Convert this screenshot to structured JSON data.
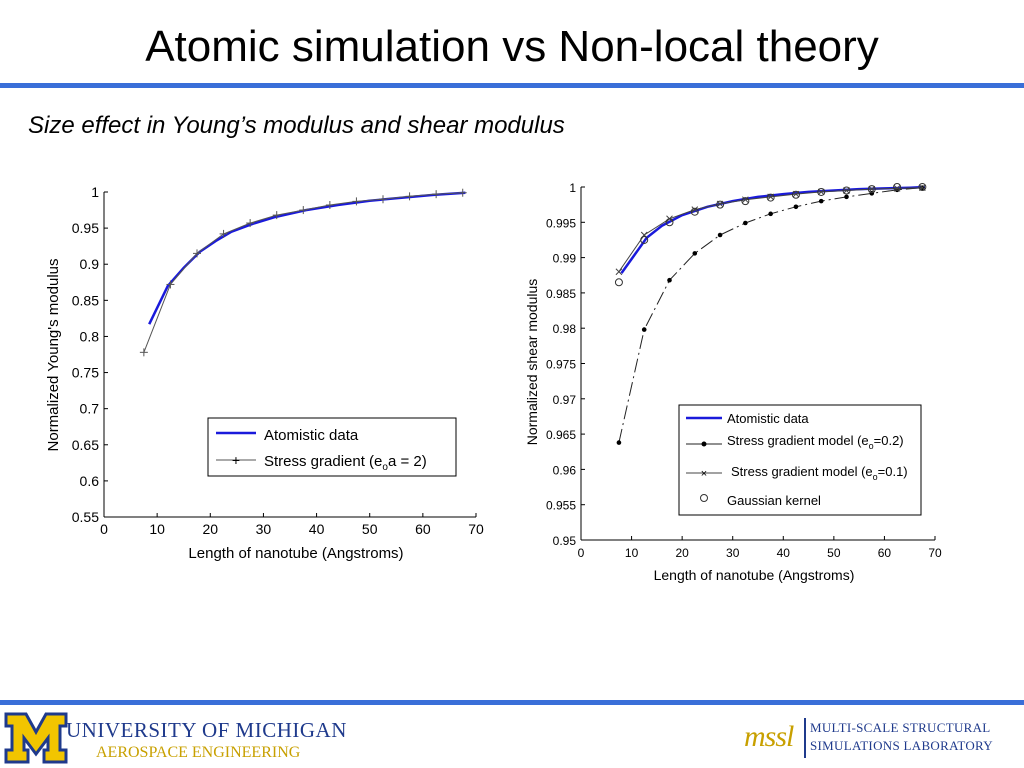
{
  "slide": {
    "title": "Atomic simulation vs Non-local theory",
    "subtitle": "Size effect in Young’s modulus and shear modulus",
    "accent_color": "#3a6fd8"
  },
  "footer": {
    "university_line1": "UNIVERSITY OF MICHIGAN",
    "university_line2": "AEROSPACE ENGINEERING",
    "logo_letter": "M",
    "lab_logo": "mssl",
    "lab_line1": "MULTI-SCALE STRUCTURAL",
    "lab_line2": "SIMULATIONS LABORATORY",
    "brand_blue": "#1f3a8c",
    "brand_maize": "#f2c500"
  },
  "chart_data": [
    {
      "type": "line",
      "xlabel": "Length of nanotube (Angstroms)",
      "ylabel": "Normalized Young's modulus",
      "xlim": [
        0,
        70
      ],
      "ylim": [
        0.55,
        1.0
      ],
      "xticks": [
        "0",
        "10",
        "20",
        "30",
        "40",
        "50",
        "60",
        "70"
      ],
      "yticks": [
        "0.55",
        "0.6",
        "0.65",
        "0.7",
        "0.75",
        "0.8",
        "0.85",
        "0.9",
        "0.95",
        "1"
      ],
      "legend_position": "bottom-right",
      "series": [
        {
          "name": "Atomistic data",
          "color": "#1a1adb",
          "style": "solid-thick",
          "x": [
            8.5,
            12,
            15,
            18,
            21,
            24,
            28,
            32,
            38,
            44,
            50,
            56,
            62,
            68
          ],
          "y": [
            0.817,
            0.87,
            0.895,
            0.917,
            0.932,
            0.945,
            0.956,
            0.965,
            0.975,
            0.982,
            0.988,
            0.992,
            0.996,
            0.999
          ]
        },
        {
          "name": "Stress gradient (eₒa = 2)",
          "color": "#555555",
          "style": "line-plus",
          "x": [
            7.5,
            12.5,
            17.5,
            22.5,
            27.5,
            32.5,
            37.5,
            42.5,
            47.5,
            52.5,
            57.5,
            62.5,
            67.5
          ],
          "y": [
            0.778,
            0.872,
            0.915,
            0.942,
            0.957,
            0.968,
            0.975,
            0.982,
            0.987,
            0.99,
            0.994,
            0.997,
            0.999
          ]
        }
      ]
    },
    {
      "type": "line",
      "xlabel": "Length of nanotube (Angstroms)",
      "ylabel": "Normalized shear modulus",
      "xlim": [
        0,
        70
      ],
      "ylim": [
        0.95,
        1.0
      ],
      "xticks": [
        "0",
        "10",
        "20",
        "30",
        "40",
        "50",
        "60",
        "70"
      ],
      "yticks": [
        "0.95",
        "0.955",
        "0.96",
        "0.965",
        "0.97",
        "0.975",
        "0.98",
        "0.985",
        "0.99",
        "0.995",
        "1"
      ],
      "legend_position": "bottom-right",
      "series": [
        {
          "name": "Atomistic data",
          "color": "#1a1adb",
          "style": "solid-thick",
          "x": [
            8,
            10,
            13,
            16,
            20,
            25,
            30,
            35,
            40,
            45,
            50,
            55,
            60,
            65,
            68
          ],
          "y": [
            0.9878,
            0.9898,
            0.9928,
            0.9945,
            0.996,
            0.9972,
            0.998,
            0.9986,
            0.999,
            0.9993,
            0.9995,
            0.9997,
            0.9998,
            0.9999,
            1.0
          ]
        },
        {
          "name": "Stress gradient model (eₒ=0.2)",
          "color": "#222222",
          "style": "dashdot-dot",
          "x": [
            7.5,
            12.5,
            17.5,
            22.5,
            27.5,
            32.5,
            37.5,
            42.5,
            47.5,
            52.5,
            57.5,
            62.5,
            67.5
          ],
          "y": [
            0.9638,
            0.9798,
            0.9868,
            0.9906,
            0.9932,
            0.9949,
            0.9962,
            0.9972,
            0.998,
            0.9986,
            0.9991,
            0.9996,
            0.9999
          ]
        },
        {
          "name": "Stress gradient model (eₒ=0.1)",
          "color": "#444444",
          "style": "line-x",
          "x": [
            7.5,
            12.5,
            17.5,
            22.5,
            27.5,
            32.5,
            37.5,
            42.5,
            47.5,
            52.5,
            57.5,
            62.5,
            67.5
          ],
          "y": [
            0.988,
            0.9932,
            0.9955,
            0.9968,
            0.9976,
            0.9982,
            0.9986,
            0.999,
            0.9993,
            0.9995,
            0.9997,
            0.9998,
            0.9999
          ]
        },
        {
          "name": "Gaussian kernel",
          "color": "#333333",
          "style": "circle",
          "x": [
            7.5,
            12.5,
            17.5,
            22.5,
            27.5,
            32.5,
            37.5,
            42.5,
            47.5,
            52.5,
            57.5,
            62.5,
            67.5
          ],
          "y": [
            0.9865,
            0.9925,
            0.995,
            0.9965,
            0.9975,
            0.998,
            0.9985,
            0.9989,
            0.9993,
            0.9995,
            0.9997,
            1.0,
            1.0
          ]
        }
      ]
    }
  ]
}
